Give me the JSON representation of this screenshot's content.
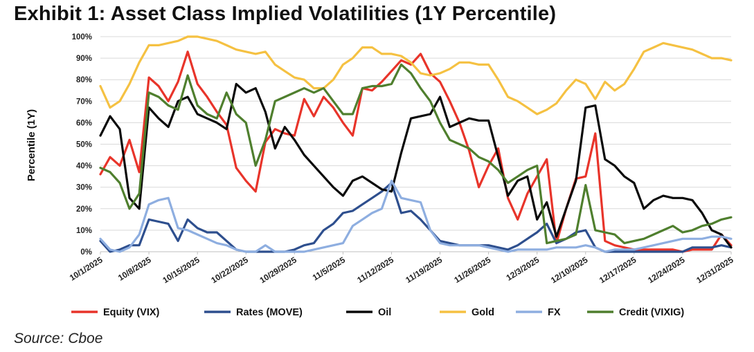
{
  "title": "Exhibit 1: Asset Class Implied Volatilities (1Y Percentile)",
  "source": "Source: Cboe",
  "chart_data": {
    "type": "line",
    "title": "Exhibit 1: Asset Class Implied Volatilities (1Y Percentile)",
    "xlabel": "",
    "ylabel": "Percentile (1Y)",
    "ylim": [
      0,
      100
    ],
    "ytick_labels": [
      "0%",
      "10%",
      "20%",
      "30%",
      "40%",
      "50%",
      "60%",
      "70%",
      "80%",
      "90%",
      "100%"
    ],
    "x_range": [
      0,
      65
    ],
    "x_tick_index": [
      0,
      7,
      14,
      21,
      28,
      35,
      42,
      49,
      56,
      63
    ],
    "x_tick_labels": [
      "10/1/2025",
      "10/8/2025",
      "10/15/2025",
      "10/22/2025",
      "10/29/2025",
      "11/5/2025",
      "11/12/2025",
      "11/19/2025",
      "11/26/2025",
      "12/3/2025",
      "12/10/2025",
      "12/17/2025",
      "12/24/2025",
      "12/31/2025"
    ],
    "x_tick_dates_index": [
      0,
      5,
      10,
      15,
      20,
      25,
      30,
      35,
      40,
      45,
      50,
      55,
      60,
      65
    ],
    "legend_position": "bottom",
    "grid": true,
    "series": [
      {
        "name": "Equity (VIX)",
        "color": "#e8342a",
        "x": [
          0,
          1,
          2,
          3,
          4,
          5,
          6,
          7,
          8,
          9,
          10,
          11,
          12,
          13,
          14,
          15,
          16,
          17,
          18,
          19,
          20,
          21,
          22,
          23,
          24,
          25,
          26,
          27,
          28,
          29,
          30,
          31,
          32,
          33,
          34,
          35,
          36,
          37,
          38,
          39,
          40,
          41,
          42,
          43,
          44,
          45,
          46,
          47,
          48,
          49,
          50,
          51,
          52,
          53,
          54,
          55,
          56,
          57,
          58,
          59,
          60,
          61,
          62,
          63,
          64,
          65
        ],
        "values": [
          36,
          44,
          40,
          52,
          37,
          81,
          77,
          70,
          79,
          93,
          78,
          72,
          65,
          59,
          39,
          33,
          28,
          51,
          57,
          55,
          54,
          71,
          63,
          72,
          67,
          60,
          54,
          76,
          75,
          79,
          84,
          89,
          87,
          92,
          83,
          79,
          70,
          60,
          47,
          30,
          40,
          48,
          25,
          15,
          27,
          35,
          43,
          4,
          20,
          34,
          35,
          55,
          5,
          3,
          2,
          1,
          1,
          1,
          1,
          1,
          0,
          1,
          1,
          1,
          8,
          3
        ]
      },
      {
        "name": "Rates (MOVE)",
        "color": "#2e4f8e",
        "x": [
          0,
          1,
          2,
          3,
          4,
          5,
          6,
          7,
          8,
          9,
          10,
          11,
          12,
          13,
          14,
          15,
          16,
          17,
          18,
          19,
          20,
          21,
          22,
          23,
          24,
          25,
          26,
          27,
          28,
          29,
          30,
          31,
          32,
          33,
          34,
          35,
          36,
          37,
          38,
          39,
          40,
          41,
          42,
          43,
          44,
          45,
          46,
          47,
          48,
          49,
          50,
          51,
          52,
          53,
          54,
          55,
          56,
          57,
          58,
          59,
          60,
          61,
          62,
          63,
          64,
          65
        ],
        "values": [
          5,
          0,
          1,
          3,
          3,
          15,
          14,
          13,
          5,
          15,
          11,
          9,
          9,
          5,
          1,
          0,
          0,
          0,
          0,
          0,
          1,
          3,
          4,
          10,
          13,
          18,
          19,
          22,
          25,
          28,
          32,
          18,
          19,
          15,
          10,
          5,
          4,
          3,
          3,
          3,
          3,
          2,
          1,
          3,
          6,
          9,
          13,
          4,
          6,
          9,
          10,
          2,
          0,
          0,
          0,
          0,
          0,
          0,
          0,
          0,
          0,
          2,
          2,
          2,
          3,
          2
        ]
      },
      {
        "name": "Oil",
        "color": "#0a0a0a",
        "x": [
          0,
          1,
          2,
          3,
          4,
          5,
          6,
          7,
          8,
          9,
          10,
          11,
          12,
          13,
          14,
          15,
          16,
          17,
          18,
          19,
          20,
          21,
          22,
          23,
          24,
          25,
          26,
          27,
          28,
          29,
          30,
          31,
          32,
          33,
          34,
          35,
          36,
          37,
          38,
          39,
          40,
          41,
          42,
          43,
          44,
          45,
          46,
          47,
          48,
          49,
          50,
          51,
          52,
          53,
          54,
          55,
          56,
          57,
          58,
          59,
          60,
          61,
          62,
          63,
          64,
          65
        ],
        "values": [
          54,
          63,
          57,
          25,
          20,
          67,
          62,
          58,
          70,
          72,
          64,
          62,
          60,
          57,
          78,
          74,
          76,
          65,
          48,
          58,
          52,
          45,
          40,
          35,
          30,
          26,
          33,
          35,
          32,
          29,
          28,
          46,
          62,
          63,
          64,
          72,
          58,
          60,
          62,
          61,
          61,
          44,
          26,
          33,
          35,
          15,
          23,
          7,
          20,
          33,
          67,
          68,
          43,
          40,
          35,
          32,
          20,
          24,
          26,
          25,
          25,
          24,
          18,
          10,
          8,
          2
        ]
      },
      {
        "name": "Gold",
        "color": "#f5c142",
        "x": [
          0,
          1,
          2,
          3,
          4,
          5,
          6,
          7,
          8,
          9,
          10,
          11,
          12,
          13,
          14,
          15,
          16,
          17,
          18,
          19,
          20,
          21,
          22,
          23,
          24,
          25,
          26,
          27,
          28,
          29,
          30,
          31,
          32,
          33,
          34,
          35,
          36,
          37,
          38,
          39,
          40,
          41,
          42,
          43,
          44,
          45,
          46,
          47,
          48,
          49,
          50,
          51,
          52,
          53,
          54,
          55,
          56,
          57,
          58,
          59,
          60,
          61,
          62,
          63,
          64,
          65
        ],
        "values": [
          77,
          67,
          70,
          78,
          88,
          96,
          96,
          97,
          98,
          100,
          100,
          99,
          98,
          96,
          94,
          93,
          92,
          93,
          87,
          84,
          81,
          80,
          76,
          76,
          80,
          87,
          90,
          95,
          95,
          92,
          92,
          91,
          88,
          83,
          82,
          83,
          85,
          88,
          88,
          87,
          87,
          80,
          72,
          70,
          67,
          64,
          66,
          69,
          75,
          80,
          78,
          71,
          79,
          75,
          78,
          85,
          93,
          95,
          97,
          96,
          95,
          94,
          92,
          90,
          90,
          89
        ]
      },
      {
        "name": "FX",
        "color": "#8eaee0",
        "x": [
          0,
          1,
          2,
          3,
          4,
          5,
          6,
          7,
          8,
          9,
          10,
          11,
          12,
          13,
          14,
          15,
          16,
          17,
          18,
          19,
          20,
          21,
          22,
          23,
          24,
          25,
          26,
          27,
          28,
          29,
          30,
          31,
          32,
          33,
          34,
          35,
          36,
          37,
          38,
          39,
          40,
          41,
          42,
          43,
          44,
          45,
          46,
          47,
          48,
          49,
          50,
          51,
          52,
          53,
          54,
          55,
          56,
          57,
          58,
          59,
          60,
          61,
          62,
          63,
          64,
          65
        ],
        "values": [
          6,
          1,
          0,
          2,
          8,
          22,
          24,
          25,
          11,
          10,
          8,
          6,
          4,
          3,
          1,
          0,
          0,
          3,
          0,
          0,
          0,
          0,
          1,
          2,
          3,
          4,
          12,
          15,
          18,
          20,
          33,
          25,
          24,
          23,
          10,
          4,
          3,
          3,
          3,
          3,
          2,
          1,
          0,
          1,
          1,
          1,
          1,
          2,
          2,
          2,
          3,
          2,
          0,
          1,
          1,
          1,
          2,
          3,
          4,
          5,
          6,
          6,
          6,
          7,
          7,
          6
        ]
      },
      {
        "name": "Credit (VIXIG)",
        "color": "#4f7f2e",
        "x": [
          0,
          1,
          2,
          3,
          4,
          5,
          6,
          7,
          8,
          9,
          10,
          11,
          12,
          13,
          14,
          15,
          16,
          17,
          18,
          19,
          20,
          21,
          22,
          23,
          24,
          25,
          26,
          27,
          28,
          29,
          30,
          31,
          32,
          33,
          34,
          35,
          36,
          37,
          38,
          39,
          40,
          41,
          42,
          43,
          44,
          45,
          46,
          47,
          48,
          49,
          50,
          51,
          52,
          53,
          54,
          55,
          56,
          57,
          58,
          59,
          60,
          61,
          62,
          63,
          64,
          65
        ],
        "values": [
          39,
          37,
          32,
          20,
          27,
          74,
          72,
          68,
          66,
          82,
          68,
          64,
          62,
          74,
          64,
          60,
          40,
          52,
          70,
          72,
          74,
          76,
          74,
          76,
          70,
          64,
          64,
          76,
          77,
          77,
          78,
          87,
          83,
          76,
          70,
          60,
          52,
          50,
          48,
          44,
          42,
          38,
          32,
          35,
          38,
          40,
          4,
          5,
          6,
          8,
          31,
          10,
          9,
          8,
          4,
          5,
          6,
          8,
          10,
          12,
          9,
          10,
          12,
          13,
          15,
          16
        ]
      }
    ]
  }
}
